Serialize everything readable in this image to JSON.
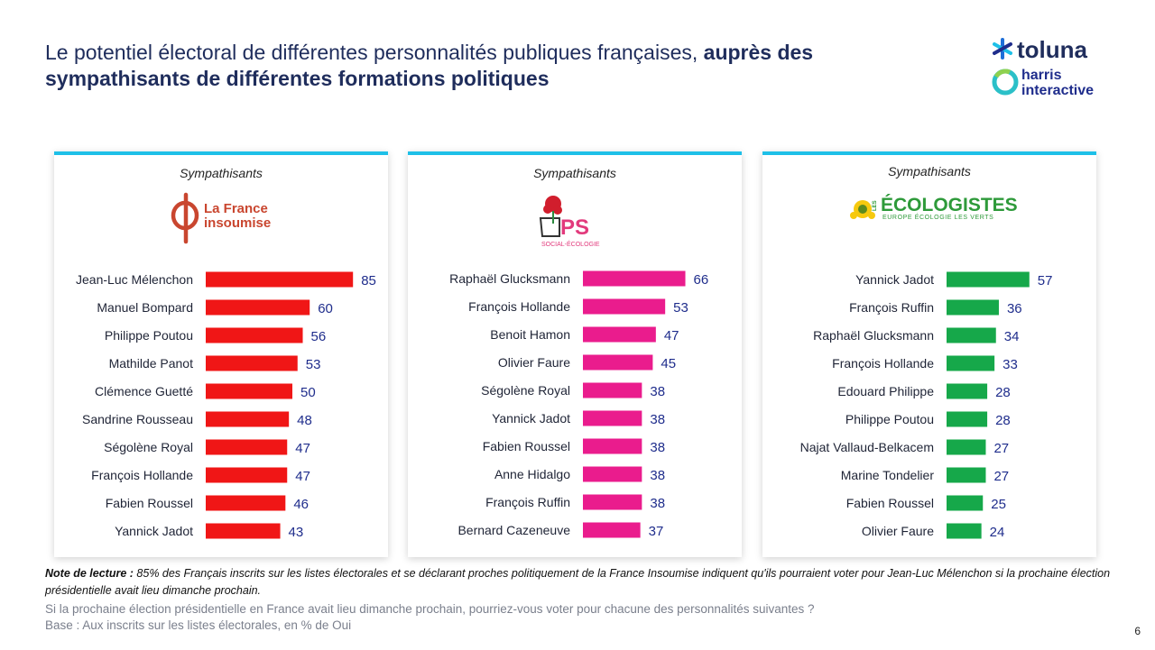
{
  "title": {
    "part1": "Le potentiel électoral de différentes personnalités publiques françaises, ",
    "part2": "auprès des sympathisants de différentes formations politiques"
  },
  "logo": {
    "brand1": "toluna",
    "brand2_line1": "harris",
    "brand2_line2": "interactive"
  },
  "colors": {
    "lfi": "#f01616",
    "ps": "#ea1c8d",
    "eco": "#16a84a",
    "accent": "#1ec0e8",
    "value": "#1f2d8c"
  },
  "panels": [
    {
      "header": "Sympathisants",
      "logo_line1": "La France",
      "logo_line2": "insoumise"
    },
    {
      "header": "Sympathisants",
      "logo_main": "PS",
      "logo_sub": "SOCIAL-ÉCOLOGIE"
    },
    {
      "header": "Sympathisants",
      "logo_prefix": "LES",
      "logo_main": "ÉCOLOGISTES",
      "logo_sub": "EUROPE ÉCOLOGIE LES VERTS"
    }
  ],
  "chart_data": [
    {
      "type": "bar",
      "title": "Sympathisants La France insoumise",
      "categories": [
        "Jean-Luc Mélenchon",
        "Manuel Bompard",
        "Philippe Poutou",
        "Mathilde Panot",
        "Clémence Guetté",
        "Sandrine Rousseau",
        "Ségolène Royal",
        "François Hollande",
        "Fabien Roussel",
        "Yannick Jadot"
      ],
      "values": [
        85,
        60,
        56,
        53,
        50,
        48,
        47,
        47,
        46,
        43
      ],
      "unit": "% de Oui",
      "ylim": [
        0,
        100
      ]
    },
    {
      "type": "bar",
      "title": "Sympathisants PS Social-Écologie",
      "categories": [
        "Raphaël Glucksmann",
        "François Hollande",
        "Benoit Hamon",
        "Olivier Faure",
        "Ségolène Royal",
        "Yannick Jadot",
        "Fabien Roussel",
        "Anne Hidalgo",
        "François Ruffin",
        "Bernard Cazeneuve"
      ],
      "values": [
        66,
        53,
        47,
        45,
        38,
        38,
        38,
        38,
        38,
        37
      ],
      "unit": "% de Oui",
      "ylim": [
        0,
        100
      ]
    },
    {
      "type": "bar",
      "title": "Sympathisants Les Écologistes",
      "categories": [
        "Yannick Jadot",
        "François Ruffin",
        "Raphaël Glucksmann",
        "François Hollande",
        "Edouard Philippe",
        "Philippe Poutou",
        "Najat Vallaud-Belkacem",
        "Marine Tondelier",
        "Fabien Roussel",
        "Olivier Faure"
      ],
      "values": [
        57,
        36,
        34,
        33,
        28,
        28,
        27,
        27,
        25,
        24
      ],
      "unit": "% de Oui",
      "ylim": [
        0,
        100
      ]
    }
  ],
  "note": {
    "label": "Note de lecture :",
    "text": " 85% des Français inscrits sur les listes électorales et se déclarant proches politiquement de la France Insoumise indiquent qu'ils pourraient voter pour Jean-Luc Mélenchon si la prochaine élection présidentielle avait lieu dimanche prochain."
  },
  "question": "Si la prochaine élection présidentielle en France avait lieu dimanche prochain, pourriez-vous voter pour chacune des personnalités suivantes ?",
  "base": "Base : Aux inscrits sur les listes électorales, en % de Oui",
  "page_number": "6"
}
